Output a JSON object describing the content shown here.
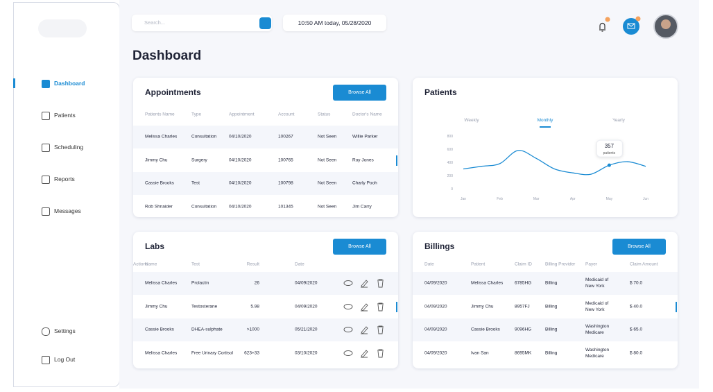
{
  "header": {
    "search_placeholder": "Search...",
    "datetime": "10:50 AM today, 05/28/2020",
    "title": "Dashboard"
  },
  "sidebar": {
    "nav": [
      "Dashboard",
      "Patients",
      "Scheduling",
      "Reports",
      "Messages"
    ],
    "footer": [
      "Settings",
      "Log Out"
    ]
  },
  "appointments": {
    "title": "Appointments",
    "button": "Browse All",
    "columns": [
      "Patients Name",
      "Type",
      "Appointment",
      "Account",
      "Status",
      "Doctor's Name"
    ],
    "rows": [
      [
        "Melissa Charles",
        "Consultation",
        "04/10/2020",
        "100267",
        "Not Seen",
        "Willie Parker"
      ],
      [
        "Jimmy Chu",
        "Surgery",
        "04/10/2020",
        "100765",
        "Not Seen",
        "Roy Jones"
      ],
      [
        "Cassie Brooks",
        "Test",
        "04/10/2020",
        "100798",
        "Not Seen",
        "Charly Pooh"
      ],
      [
        "Rob Shnaider",
        "Consultation",
        "04/10/2020",
        "101345",
        "Not Seen",
        "Jim Carry"
      ]
    ]
  },
  "labs": {
    "title": "Labs",
    "button": "Browse All",
    "columns": [
      "Name",
      "Test",
      "Result",
      "Date",
      "Actions"
    ],
    "rows": [
      [
        "Melissa Charles",
        "Prolactin",
        "26",
        "04/09/2020"
      ],
      [
        "Jimmy Chu",
        "Testosterane",
        "5.98",
        "04/09/2020"
      ],
      [
        "Cassie Brooks",
        "DHEA-sulphate",
        ">1000",
        "05/21/2020"
      ],
      [
        "Melissa Charles",
        "Free Urinary Cortisol",
        "623+33",
        "03/10/2020"
      ]
    ]
  },
  "billings": {
    "title": "Billings",
    "button": "Browse All",
    "columns": [
      "Date",
      "Patient",
      "Claim ID",
      "Billing Provider",
      "Payer",
      "Claim Amount"
    ],
    "rows": [
      [
        "04/09/2020",
        "Melissa Charles",
        "6785HG",
        "Billing",
        "Medicaid of New York",
        "$ 70.0"
      ],
      [
        "04/09/2020",
        "Jimmy Chu",
        "8957FJ",
        "Billing",
        "Medicaid of New York",
        "$ 40.0"
      ],
      [
        "04/09/2020",
        "Cassie Brooks",
        "9096HG",
        "Billing",
        "Washington Medicare",
        "$ 65.0"
      ],
      [
        "04/09/2020",
        "Ivan San",
        "8695MK",
        "Billing",
        "Washington Medicare",
        "$ 80.0"
      ]
    ]
  },
  "chart_data": {
    "type": "line",
    "title": "Patients",
    "tabs": [
      "Weekly",
      "Monthly",
      "Yearly"
    ],
    "active_tab": 1,
    "categories": [
      "Jan",
      null,
      "Feb",
      null,
      "Mar",
      null,
      "Apr",
      null,
      "May",
      null,
      "Jun"
    ],
    "values": [
      300,
      340,
      380,
      580,
      460,
      300,
      240,
      220,
      357,
      410,
      340
    ],
    "color": "#1a8bd3",
    "ylim": [
      0,
      800
    ],
    "yticks": [
      0,
      200,
      400,
      600,
      800
    ],
    "grid": false,
    "annotation": "patients"
  }
}
